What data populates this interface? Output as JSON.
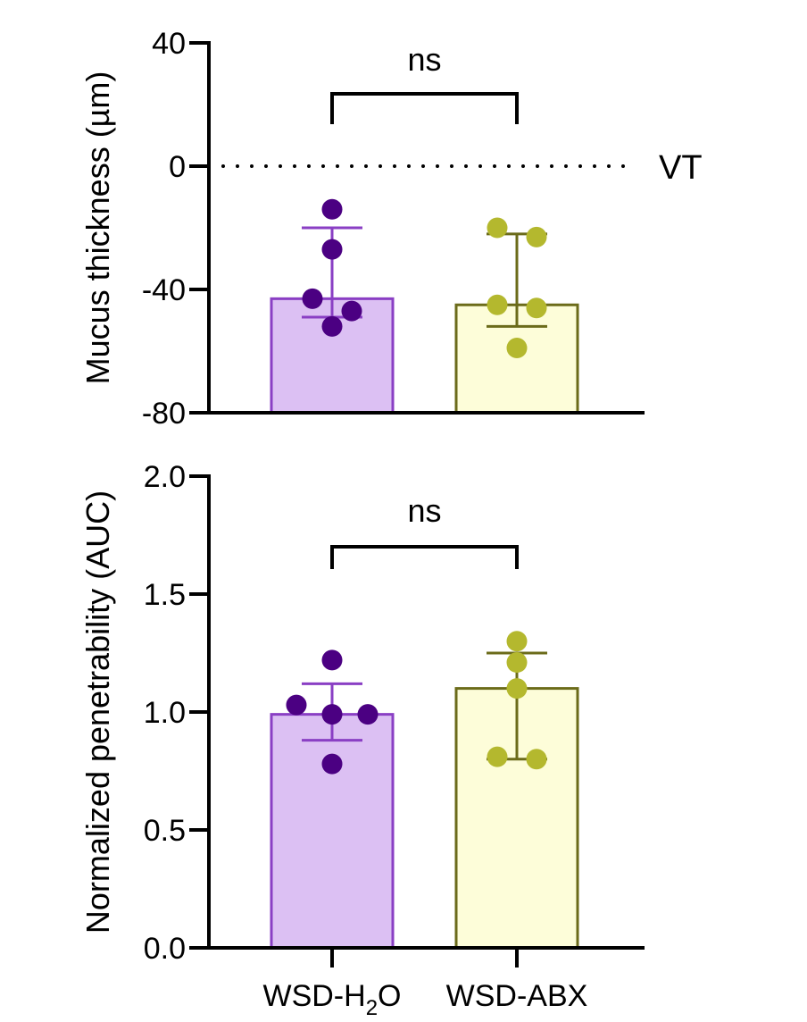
{
  "chart_data": [
    {
      "type": "bar",
      "ylabel": "Mucus thickness (µm)",
      "ylim": [
        -80,
        40
      ],
      "yticks": [
        40,
        0,
        -40,
        -80
      ],
      "ytick_labels": [
        "40",
        "0",
        "-40",
        "-80"
      ],
      "categories": [
        "WSD-H2O",
        "WSD-ABX"
      ],
      "bars": [
        {
          "category": "WSD-H2O",
          "mean": -43,
          "error_low": -49,
          "error_high": -20,
          "points": [
            -14,
            -27,
            -43,
            -47,
            -52
          ],
          "fill": "#dcc0f3",
          "edge": "#8a3fc4",
          "point_color": "#4b0082"
        },
        {
          "category": "WSD-ABX",
          "mean": -45,
          "error_low": -52,
          "error_high": -22,
          "points": [
            -20,
            -23,
            -45,
            -46,
            -59
          ],
          "fill": "#fdfdd9",
          "edge": "#6b6b1a",
          "point_color": "#b4b82e"
        }
      ],
      "reference_line": {
        "y": 0,
        "label": "VT",
        "style": "dotted"
      },
      "significance": {
        "label": "ns",
        "between": [
          "WSD-H2O",
          "WSD-ABX"
        ]
      },
      "grid": false
    },
    {
      "type": "bar",
      "ylabel": "Normalized penetrability (AUC)",
      "ylim": [
        0,
        2
      ],
      "yticks": [
        2.0,
        1.5,
        1.0,
        0.5,
        0.0
      ],
      "ytick_labels": [
        "2.0",
        "1.5",
        "1.0",
        "0.5",
        "0.0"
      ],
      "categories": [
        "WSD-H2O",
        "WSD-ABX"
      ],
      "category_labels": [
        {
          "main": "WSD-H",
          "sub": "2",
          "tail": "O"
        },
        {
          "main": "WSD-ABX",
          "sub": "",
          "tail": ""
        }
      ],
      "bars": [
        {
          "category": "WSD-H2O",
          "mean": 0.99,
          "error_low": 0.88,
          "error_high": 1.12,
          "points": [
            1.22,
            1.03,
            0.99,
            0.99,
            0.78
          ],
          "fill": "#dcc0f3",
          "edge": "#8a3fc4",
          "point_color": "#4b0082"
        },
        {
          "category": "WSD-ABX",
          "mean": 1.1,
          "error_low": 0.8,
          "error_high": 1.25,
          "points": [
            1.3,
            1.21,
            1.1,
            0.81,
            0.8
          ],
          "fill": "#fdfdd9",
          "edge": "#6b6b1a",
          "point_color": "#b4b82e"
        }
      ],
      "significance": {
        "label": "ns",
        "between": [
          "WSD-H2O",
          "WSD-ABX"
        ]
      },
      "grid": false
    }
  ]
}
